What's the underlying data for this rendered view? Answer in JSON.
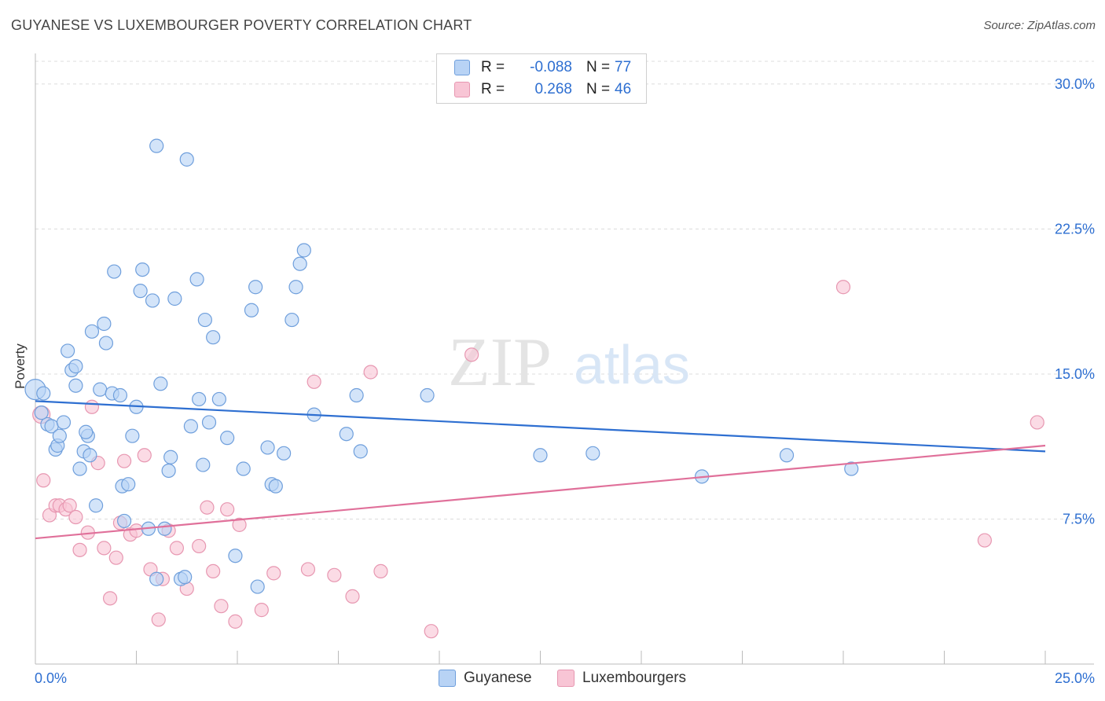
{
  "title": "GUYANESE VS LUXEMBOURGER POVERTY CORRELATION CHART",
  "source": "Source: ZipAtlas.com",
  "watermark": {
    "zip": "ZIP",
    "atlas": "atlas"
  },
  "legend": {
    "rows": [
      {
        "r_label": "R =",
        "r_value": "-0.088",
        "n_label": "N =",
        "n_value": "77"
      },
      {
        "r_label": "R =",
        "r_value": "0.268",
        "n_label": "N =",
        "n_value": "46"
      }
    ]
  },
  "bottom_legend": [
    "Guyanese",
    "Luxembourgers"
  ],
  "colors": {
    "blue_fill": "#b8d3f5",
    "blue_stroke": "#6f9fdc",
    "blue_line": "#2e6fd1",
    "pink_fill": "#f8c5d5",
    "pink_stroke": "#e797b1",
    "pink_line": "#e0709a",
    "tick_text": "#2e6fd1"
  },
  "chart_data": {
    "type": "scatter",
    "title": "GUYANESE VS LUXEMBOURGER POVERTY CORRELATION CHART",
    "xlabel": "",
    "ylabel": "Poverty",
    "xlim": [
      0,
      25
    ],
    "ylim": [
      0,
      31.5
    ],
    "x_tick_labels": [
      "0.0%",
      "25.0%"
    ],
    "y_ticks": [
      7.5,
      15.0,
      22.5,
      30.0
    ],
    "y_tick_labels": [
      "7.5%",
      "15.0%",
      "22.5%",
      "30.0%"
    ],
    "grid": "horizontal dashed",
    "legend_position": "top-center",
    "series": [
      {
        "name": "Guyanese",
        "trend": [
          [
            0,
            13.6
          ],
          [
            25,
            11.0
          ]
        ],
        "points": [
          [
            0.0,
            14.2
          ],
          [
            0.2,
            14.0
          ],
          [
            0.3,
            12.4
          ],
          [
            0.4,
            12.3
          ],
          [
            0.5,
            11.1
          ],
          [
            0.55,
            11.3
          ],
          [
            0.6,
            11.8
          ],
          [
            0.7,
            12.5
          ],
          [
            0.8,
            16.2
          ],
          [
            0.9,
            15.2
          ],
          [
            1.0,
            14.4
          ],
          [
            1.0,
            15.4
          ],
          [
            1.1,
            10.1
          ],
          [
            1.2,
            11.0
          ],
          [
            1.3,
            11.8
          ],
          [
            1.35,
            10.8
          ],
          [
            1.4,
            17.2
          ],
          [
            1.5,
            8.2
          ],
          [
            1.6,
            14.2
          ],
          [
            1.7,
            17.6
          ],
          [
            1.75,
            16.6
          ],
          [
            1.9,
            14.0
          ],
          [
            1.95,
            20.3
          ],
          [
            2.1,
            13.9
          ],
          [
            2.15,
            9.2
          ],
          [
            2.2,
            7.4
          ],
          [
            2.3,
            9.3
          ],
          [
            2.4,
            11.8
          ],
          [
            2.5,
            13.3
          ],
          [
            2.6,
            19.3
          ],
          [
            2.65,
            20.4
          ],
          [
            2.8,
            7.0
          ],
          [
            2.9,
            18.8
          ],
          [
            3.0,
            26.8
          ],
          [
            3.0,
            4.4
          ],
          [
            3.1,
            14.5
          ],
          [
            3.2,
            7.0
          ],
          [
            3.3,
            10.0
          ],
          [
            3.35,
            10.7
          ],
          [
            3.45,
            18.9
          ],
          [
            3.6,
            4.4
          ],
          [
            3.7,
            4.5
          ],
          [
            3.75,
            26.1
          ],
          [
            3.85,
            12.3
          ],
          [
            4.0,
            19.9
          ],
          [
            4.05,
            13.7
          ],
          [
            4.15,
            10.3
          ],
          [
            4.2,
            17.8
          ],
          [
            4.3,
            12.5
          ],
          [
            4.4,
            16.9
          ],
          [
            4.55,
            13.7
          ],
          [
            4.75,
            11.7
          ],
          [
            4.95,
            5.6
          ],
          [
            5.15,
            10.1
          ],
          [
            5.35,
            18.3
          ],
          [
            5.45,
            19.5
          ],
          [
            5.5,
            4.0
          ],
          [
            5.75,
            11.2
          ],
          [
            5.85,
            9.3
          ],
          [
            5.95,
            9.2
          ],
          [
            6.15,
            10.9
          ],
          [
            6.35,
            17.8
          ],
          [
            6.45,
            19.5
          ],
          [
            6.55,
            20.7
          ],
          [
            6.65,
            21.4
          ],
          [
            6.9,
            12.9
          ],
          [
            7.7,
            11.9
          ],
          [
            7.95,
            13.9
          ],
          [
            8.05,
            11.0
          ],
          [
            9.7,
            13.9
          ],
          [
            12.5,
            10.8
          ],
          [
            13.8,
            10.9
          ],
          [
            16.5,
            9.7
          ],
          [
            18.6,
            10.8
          ],
          [
            20.2,
            10.1
          ],
          [
            0.15,
            13.0
          ],
          [
            1.25,
            12.0
          ]
        ]
      },
      {
        "name": "Luxembourgers",
        "trend": [
          [
            0,
            6.5
          ],
          [
            25,
            11.3
          ]
        ],
        "points": [
          [
            0.15,
            12.9
          ],
          [
            0.2,
            9.5
          ],
          [
            0.35,
            7.7
          ],
          [
            0.5,
            8.2
          ],
          [
            0.6,
            8.2
          ],
          [
            0.75,
            8.0
          ],
          [
            0.85,
            8.2
          ],
          [
            1.0,
            7.6
          ],
          [
            1.1,
            5.9
          ],
          [
            1.3,
            6.8
          ],
          [
            1.4,
            13.3
          ],
          [
            1.55,
            10.4
          ],
          [
            1.7,
            6.0
          ],
          [
            1.85,
            3.4
          ],
          [
            2.0,
            5.5
          ],
          [
            2.1,
            7.3
          ],
          [
            2.2,
            10.5
          ],
          [
            2.35,
            6.7
          ],
          [
            2.5,
            6.9
          ],
          [
            2.7,
            10.8
          ],
          [
            2.85,
            4.9
          ],
          [
            3.05,
            2.3
          ],
          [
            3.15,
            4.4
          ],
          [
            3.3,
            6.9
          ],
          [
            3.5,
            6.0
          ],
          [
            3.75,
            3.9
          ],
          [
            4.05,
            6.1
          ],
          [
            4.25,
            8.1
          ],
          [
            4.4,
            4.8
          ],
          [
            4.6,
            3.0
          ],
          [
            4.75,
            8.0
          ],
          [
            4.95,
            2.2
          ],
          [
            5.05,
            7.2
          ],
          [
            5.6,
            2.8
          ],
          [
            5.9,
            4.7
          ],
          [
            6.75,
            4.9
          ],
          [
            6.9,
            14.6
          ],
          [
            7.4,
            4.6
          ],
          [
            7.85,
            3.5
          ],
          [
            8.3,
            15.1
          ],
          [
            8.55,
            4.8
          ],
          [
            9.8,
            1.7
          ],
          [
            10.8,
            16.0
          ],
          [
            20.0,
            19.5
          ],
          [
            23.5,
            6.4
          ],
          [
            24.8,
            12.5
          ]
        ]
      }
    ]
  }
}
